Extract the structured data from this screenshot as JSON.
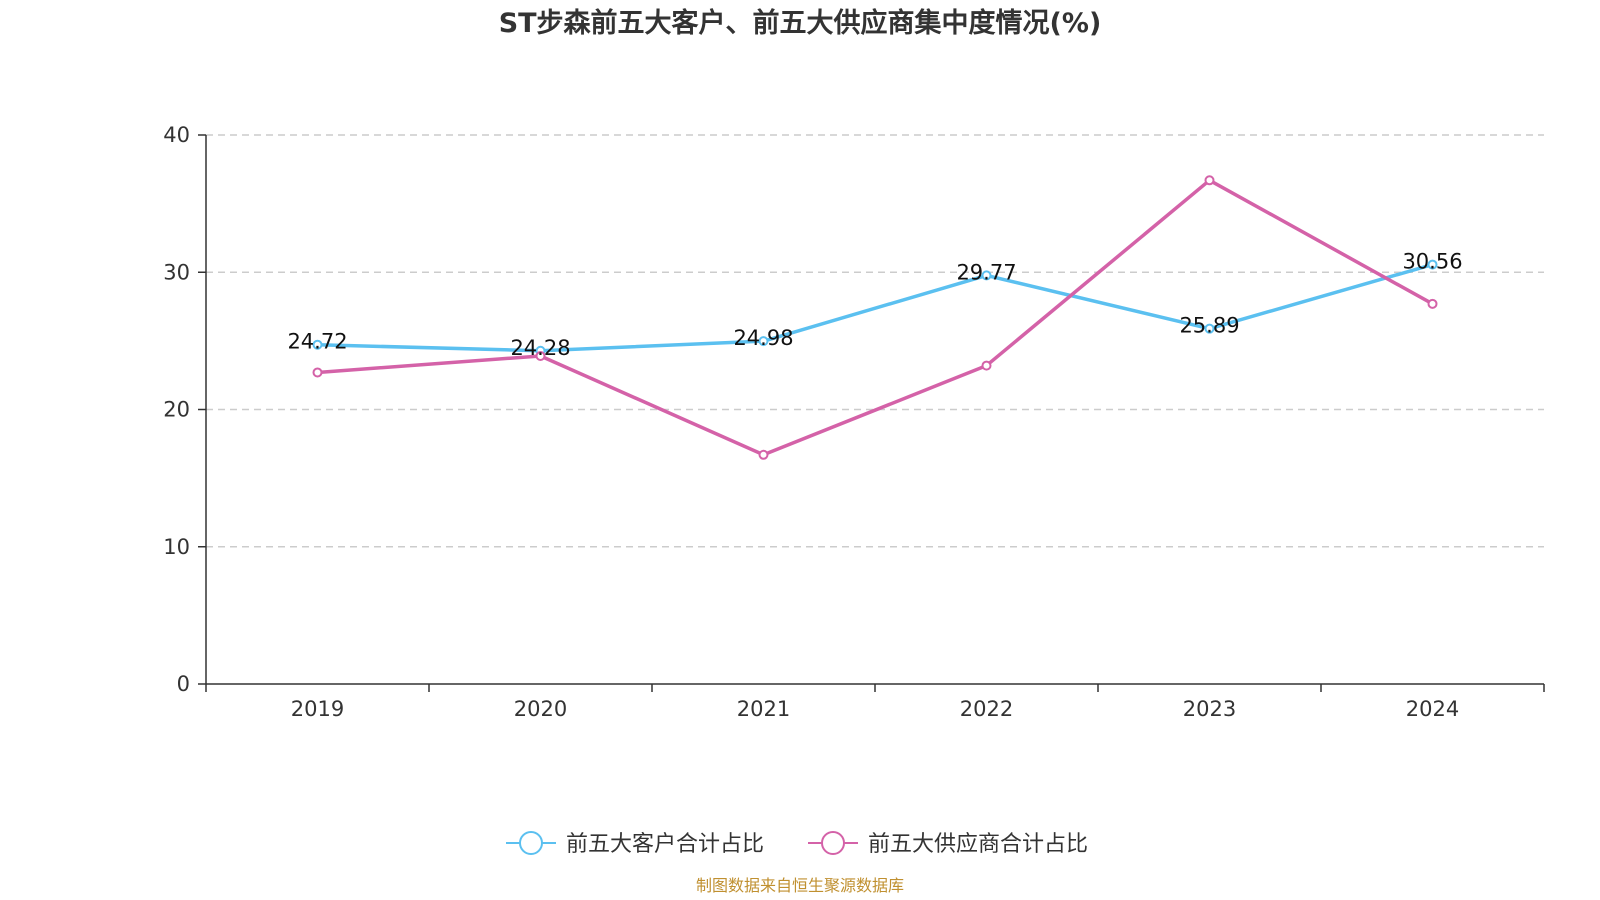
{
  "chart_data": {
    "type": "line",
    "title": "ST步森前五大客户、前五大供应商集中度情况(%)",
    "categories": [
      "2019",
      "2020",
      "2021",
      "2022",
      "2023",
      "2024"
    ],
    "ylim": [
      0,
      40
    ],
    "yticks": [
      0,
      10,
      20,
      30,
      40
    ],
    "grid": "horizontal dashed",
    "legend_position": "bottom",
    "series": [
      {
        "name": "前五大客户合计占比",
        "color": "#5bc0f0",
        "values": [
          24.72,
          24.28,
          24.98,
          29.77,
          25.89,
          30.56
        ],
        "data_labels": [
          "24.72",
          "24.28",
          "24.98",
          "29.77",
          "25.89",
          "30.56"
        ]
      },
      {
        "name": "前五大供应商合计占比",
        "color": "#d462a8",
        "values": [
          22.7,
          23.9,
          16.7,
          23.2,
          36.7,
          27.7
        ],
        "data_labels": null
      }
    ]
  },
  "source": "制图数据来自恒生聚源数据库"
}
